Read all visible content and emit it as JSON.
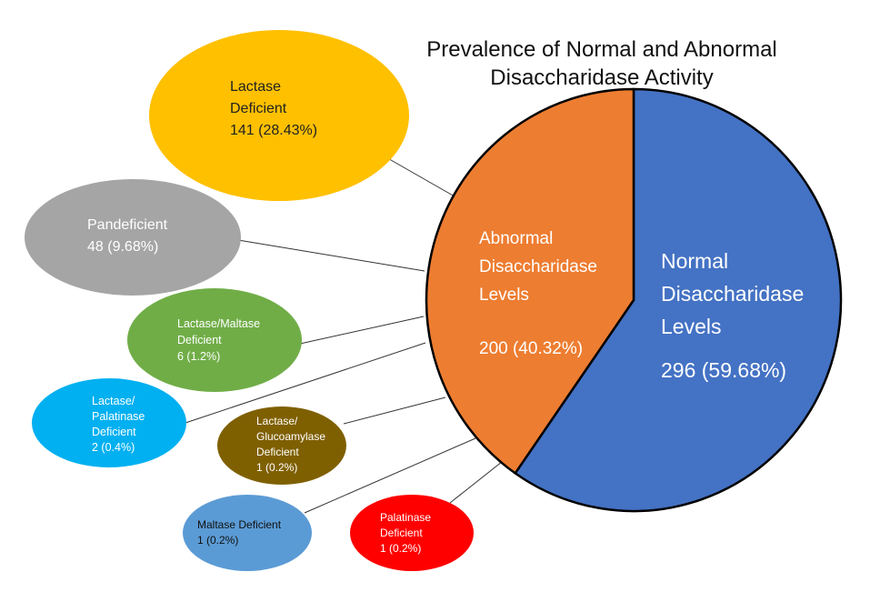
{
  "chart_data": {
    "type": "pie",
    "title": [
      "Prevalence of Normal and Abnormal",
      "Disaccharidase Activity"
    ],
    "slices": [
      {
        "id": "normal",
        "lines": [
          "Normal",
          "Disaccharidase",
          "Levels"
        ],
        "value_text": "296 (59.68%)",
        "count": 296,
        "percent": 59.68,
        "color": "#4472c4"
      },
      {
        "id": "abnormal",
        "lines": [
          "Abnormal",
          "Disaccharidase",
          "Levels"
        ],
        "value_text": "200 (40.32%)",
        "count": 200,
        "percent": 40.32,
        "color": "#ed7d31"
      }
    ],
    "breakdown_of": "abnormal",
    "breakdown": [
      {
        "id": "lactase-deficient",
        "lines": [
          "Lactase",
          "Deficient",
          "141 (28.43%)"
        ],
        "count": 141,
        "percent": 28.43,
        "color": "#ffc000",
        "text_color": "#222222"
      },
      {
        "id": "pandeficient",
        "lines": [
          "Pandeficient",
          "48 (9.68%)"
        ],
        "count": 48,
        "percent": 9.68,
        "color": "#a5a5a5",
        "text_color": "#ffffff"
      },
      {
        "id": "lactase-maltase-deficient",
        "lines": [
          "Lactase/Maltase",
          "Deficient",
          "6 (1.2%)"
        ],
        "count": 6,
        "percent": 1.2,
        "color": "#70ad47",
        "text_color": "#ffffff"
      },
      {
        "id": "lactase-palatinase-deficient",
        "lines": [
          "Lactase/",
          "Palatinase",
          "Deficient",
          "2 (0.4%)"
        ],
        "count": 2,
        "percent": 0.4,
        "color": "#00b0f0",
        "text_color": "#ffffff"
      },
      {
        "id": "lactase-glucoamylase-deficient",
        "lines": [
          "Lactase/",
          "Glucoamylase",
          "Deficient",
          "1 (0.2%)"
        ],
        "count": 1,
        "percent": 0.2,
        "color": "#7f6000",
        "text_color": "#ffffff"
      },
      {
        "id": "maltase-deficient",
        "lines": [
          "Maltase Deficient",
          "1 (0.2%)"
        ],
        "count": 1,
        "percent": 0.2,
        "color": "#5b9bd5",
        "text_color": "#111111"
      },
      {
        "id": "palatinase-deficient",
        "lines": [
          "Palatinase",
          "Deficient",
          "1 (0.2%)"
        ],
        "count": 1,
        "percent": 0.2,
        "color": "#ff0000",
        "text_color": "#ffffff"
      }
    ]
  }
}
